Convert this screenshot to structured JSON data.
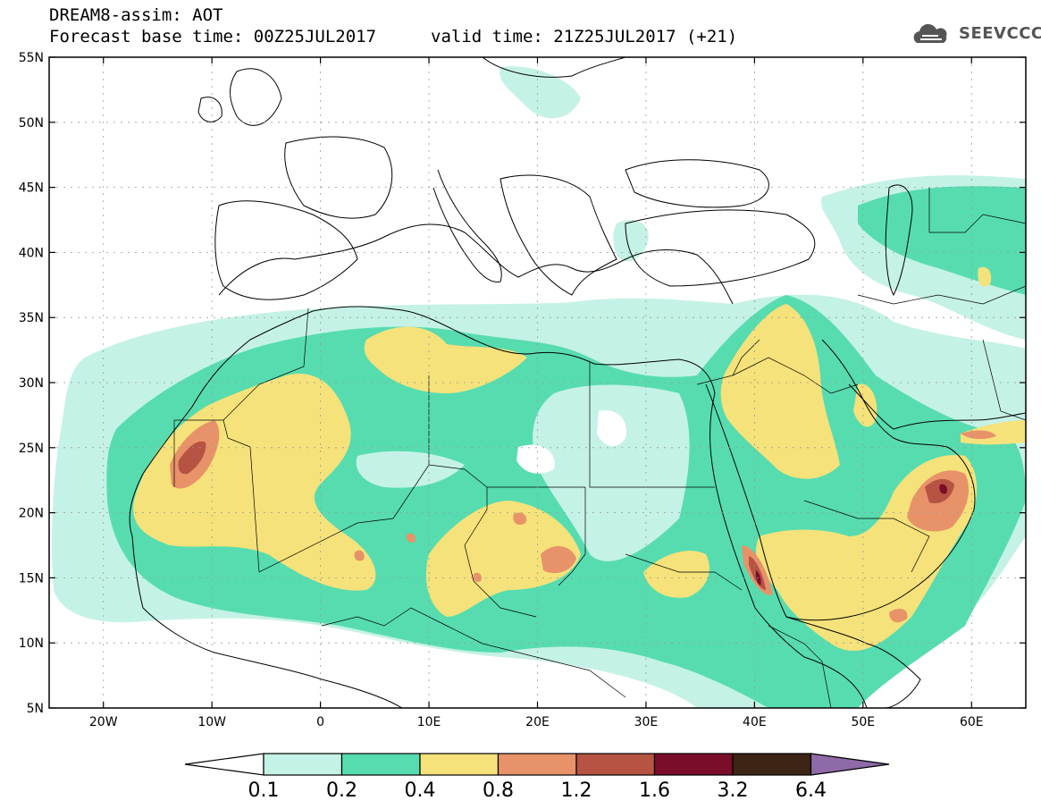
{
  "header": {
    "line1": "DREAM8-assim: AOT",
    "line2": "Forecast base time: 00Z25JUL2017",
    "valid": "valid time: 21Z25JUL2017 (+21)",
    "logo_text": "SEEVCCC"
  },
  "map": {
    "extent": {
      "lon_min": -25,
      "lon_max": 65,
      "lat_min": 5,
      "lat_max": 55
    },
    "lat_ticks": [
      {
        "value": 55,
        "label": "55N"
      },
      {
        "value": 50,
        "label": "50N"
      },
      {
        "value": 45,
        "label": "45N"
      },
      {
        "value": 40,
        "label": "40N"
      },
      {
        "value": 35,
        "label": "35N"
      },
      {
        "value": 30,
        "label": "30N"
      },
      {
        "value": 25,
        "label": "25N"
      },
      {
        "value": 20,
        "label": "20N"
      },
      {
        "value": 15,
        "label": "15N"
      },
      {
        "value": 10,
        "label": "10N"
      },
      {
        "value": 5,
        "label": "5N"
      }
    ],
    "lon_ticks": [
      {
        "value": -20,
        "label": "20W"
      },
      {
        "value": -10,
        "label": "10W"
      },
      {
        "value": 0,
        "label": "0"
      },
      {
        "value": 10,
        "label": "10E"
      },
      {
        "value": 20,
        "label": "20E"
      },
      {
        "value": 30,
        "label": "30E"
      },
      {
        "value": 40,
        "label": "40E"
      },
      {
        "value": 50,
        "label": "50E"
      },
      {
        "value": 60,
        "label": "60E"
      }
    ]
  },
  "colorbar": {
    "levels": [
      "0.1",
      "0.2",
      "0.4",
      "0.8",
      "1.2",
      "1.6",
      "3.2",
      "6.4"
    ],
    "colors": [
      "#c5f2e6",
      "#57dcb0",
      "#f5e27a",
      "#e8926a",
      "#b65343",
      "#7a0e2a",
      "#3d2415"
    ],
    "over_color": "#8e6aa8"
  },
  "colors": {
    "aot_0_1": "#c5f2e6",
    "aot_0_2": "#57dcb0",
    "aot_0_4": "#f5e27a",
    "aot_0_8": "#e8926a",
    "aot_1_2": "#b65343",
    "aot_1_6": "#7a0e2a"
  }
}
